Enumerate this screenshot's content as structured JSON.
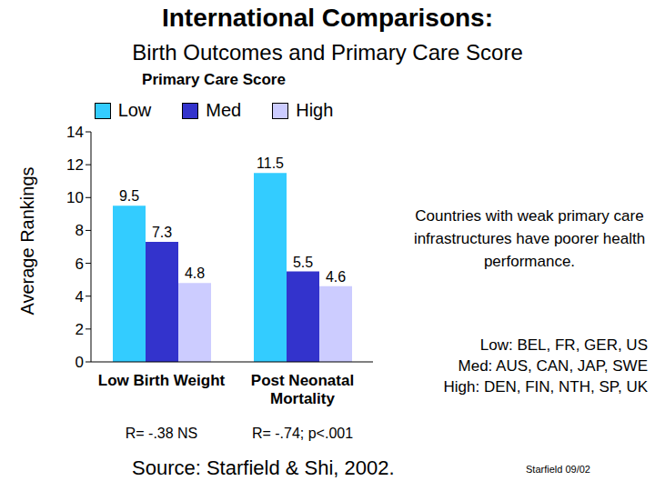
{
  "chart_data": {
    "type": "bar",
    "title": "International Comparisons:",
    "subtitle": "Birth Outcomes and Primary Care Score",
    "legend_title": "Primary Care Score",
    "y_label": "Average Rankings",
    "categories": [
      "Low Birth Weight",
      "Post Neonatal Mortality"
    ],
    "series": [
      {
        "name": "Low",
        "color": "#33ccff",
        "values": [
          9.5,
          11.5
        ]
      },
      {
        "name": "Med",
        "color": "#3333cc",
        "values": [
          7.3,
          5.5
        ]
      },
      {
        "name": "High",
        "color": "#ccccff",
        "values": [
          4.8,
          4.6
        ]
      }
    ],
    "ylim": [
      0,
      14
    ],
    "yticks": [
      0,
      2,
      4,
      6,
      8,
      10,
      12,
      14
    ],
    "grid": false,
    "data_labels": true,
    "legend": "top",
    "category_stats": [
      "R= -.38 NS",
      "R= -.74; p<.001"
    ],
    "annotation": "Countries with weak primary care infrastructures have poorer health performance.",
    "groups": [
      "Low: BEL, FR, GER, US",
      "Med: AUS, CAN, JAP, SWE",
      "High: DEN, FIN, NTH, SP, UK"
    ],
    "source": "Source: Starfield & Shi, 2002.",
    "footnote": "Starfield 09/02"
  }
}
